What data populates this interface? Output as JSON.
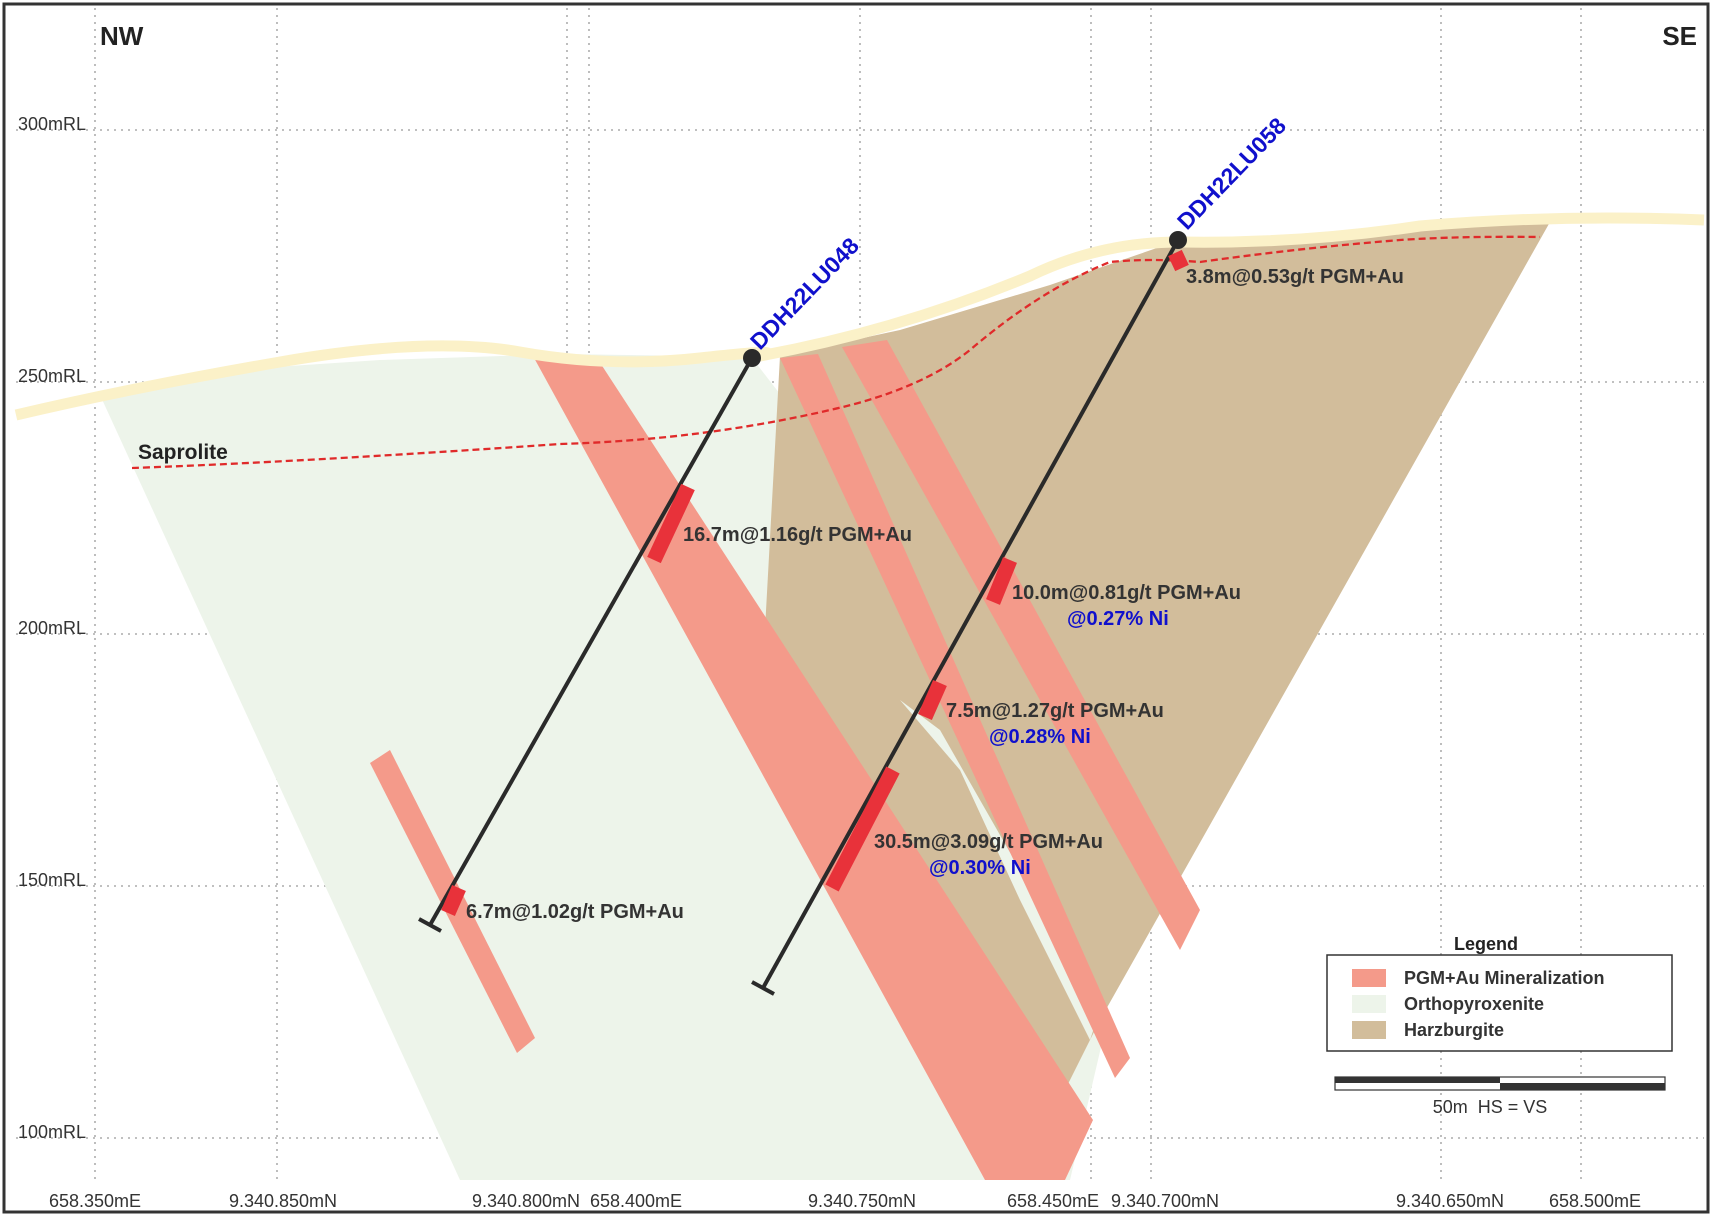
{
  "orientation": {
    "left": "NW",
    "right": "SE"
  },
  "elevation_labels": [
    "300mRL",
    "250mRL",
    "200mRL",
    "150mRL",
    "100mRL"
  ],
  "easting_northing_labels": [
    "658.350mE",
    "9.340.850mN",
    "9.340.800mN",
    "658.400mE",
    "9.340.750mN",
    "658.450mE",
    "9.340.700mN",
    "9.340.650mN",
    "658.500mE"
  ],
  "drillholes": [
    {
      "id": "DDH22LU048"
    },
    {
      "id": "DDH22LU058"
    }
  ],
  "intercepts": [
    {
      "text": "16.7m@1.16g/t PGM+Au",
      "ni": ""
    },
    {
      "text": "6.7m@1.02g/t PGM+Au",
      "ni": ""
    },
    {
      "text": "3.8m@0.53g/t PGM+Au",
      "ni": ""
    },
    {
      "text": "10.0m@0.81g/t PGM+Au",
      "ni": "@0.27% Ni"
    },
    {
      "text": "7.5m@1.27g/t PGM+Au",
      "ni": "@0.28% Ni"
    },
    {
      "text": "30.5m@3.09g/t PGM+Au",
      "ni": "@0.30% Ni"
    }
  ],
  "saprolite_label": "Saprolite",
  "legend": {
    "title": "Legend",
    "items": [
      {
        "label": "PGM+Au Mineralization",
        "color": "#f49a8a"
      },
      {
        "label": "Orthopyroxenite",
        "color": "#edf4ea"
      },
      {
        "label": "Harzburgite",
        "color": "#d2bd9b"
      }
    ]
  },
  "scale_bar": {
    "label": "50m  HS = VS"
  },
  "colors": {
    "mineralization": "#f49a8a",
    "high_grade": "#e8323a",
    "orthopyroxenite": "#edf4ea",
    "harzburgite": "#d2bd9b",
    "surface": "#fbf1c8",
    "saprolite_line": "#e02a2a",
    "hole_text": "#1010cc",
    "drill_trace": "#2a2a2a"
  }
}
